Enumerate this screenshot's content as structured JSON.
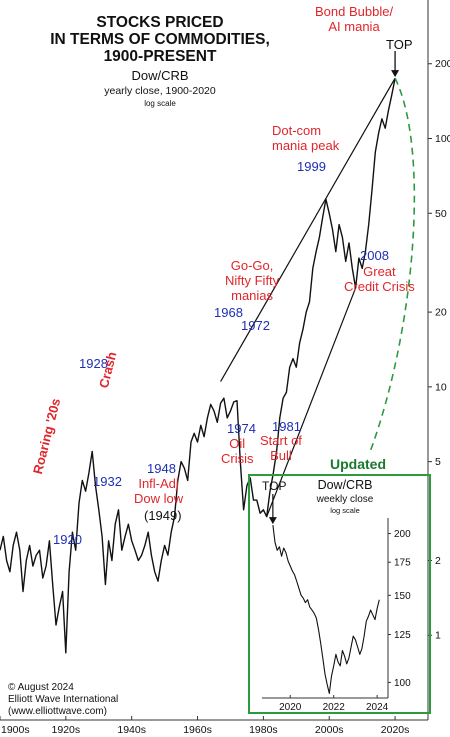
{
  "header": {
    "title_lines": [
      "STOCKS PRICED",
      "IN TERMS OF COMMODITIES,",
      "1900-PRESENT"
    ],
    "subtitle": "Dow/CRB",
    "subtitle2": "yearly close, 1900-2020",
    "subtitle3": "log scale"
  },
  "footer": {
    "line1": "© August 2024",
    "line2": "Elliott Wave International",
    "line3": "(www.elliottwave.com)"
  },
  "annotations": {
    "bond_bubble": [
      "Bond Bubble/",
      "AI mania"
    ],
    "top": "TOP",
    "dotcom": [
      "Dot-com",
      "mania peak"
    ],
    "y1999": "1999",
    "y2008": "2008",
    "great_credit": [
      "Great",
      "Credit Crisis"
    ],
    "gogo": [
      "Go-Go,",
      "Nifty Fifty",
      "manias"
    ],
    "y1968": "1968",
    "y1972": "1972",
    "y1928": "1928",
    "crash": "Crash",
    "roaring": "Roaring '20s",
    "y1932": "1932",
    "y1920": "1920",
    "y1948": "1948",
    "infl_adj": [
      "Infl-Adj",
      "Dow low"
    ],
    "y1949": "(1949)",
    "y1974": "1974",
    "oil_crisis": [
      "Oil",
      "Crisis"
    ],
    "y1981": "1981",
    "start_bull": [
      "Start of",
      "Bull"
    ],
    "updated": "Updated"
  },
  "colors": {
    "red": "#e0262b",
    "blue": "#1f2fb5",
    "green": "#2e9a3e",
    "line": "#111111"
  },
  "chart_data": [
    {
      "type": "line",
      "title": "STOCKS PRICED IN TERMS OF COMMODITIES, 1900-PRESENT",
      "ylabel": "Dow/CRB",
      "yscale": "log",
      "ylim": [
        0.5,
        300
      ],
      "xlim": [
        1900,
        2030
      ],
      "x_ticks": [
        "1900s",
        "1920s",
        "1940s",
        "1960s",
        "1980s",
        "2000s",
        "2020s"
      ],
      "y_ticks": [
        1,
        2,
        5,
        10,
        20,
        50,
        100,
        200
      ],
      "x": [
        1900,
        1901,
        1902,
        1903,
        1904,
        1905,
        1906,
        1907,
        1908,
        1909,
        1910,
        1911,
        1912,
        1913,
        1914,
        1915,
        1916,
        1917,
        1918,
        1919,
        1920,
        1921,
        1922,
        1923,
        1924,
        1925,
        1926,
        1927,
        1928,
        1929,
        1930,
        1931,
        1932,
        1933,
        1934,
        1935,
        1936,
        1937,
        1938,
        1939,
        1940,
        1941,
        1942,
        1943,
        1944,
        1945,
        1946,
        1947,
        1948,
        1949,
        1950,
        1951,
        1952,
        1953,
        1954,
        1955,
        1956,
        1957,
        1958,
        1959,
        1960,
        1961,
        1962,
        1963,
        1964,
        1965,
        1966,
        1967,
        1968,
        1969,
        1970,
        1971,
        1972,
        1973,
        1974,
        1975,
        1976,
        1977,
        1978,
        1979,
        1980,
        1981,
        1982,
        1983,
        1984,
        1985,
        1986,
        1987,
        1988,
        1989,
        1990,
        1991,
        1992,
        1993,
        1994,
        1995,
        1996,
        1997,
        1998,
        1999,
        2000,
        2001,
        2002,
        2003,
        2004,
        2005,
        2006,
        2007,
        2008,
        2009,
        2010,
        2011,
        2012,
        2013,
        2014,
        2015,
        2016,
        2017,
        2018,
        2019,
        2020
      ],
      "y": [
        2.2,
        2.5,
        2.0,
        1.8,
        2.3,
        2.6,
        2.2,
        1.5,
        2.0,
        2.3,
        1.9,
        2.1,
        2.2,
        1.7,
        1.9,
        2.4,
        1.6,
        1.1,
        1.3,
        1.5,
        0.85,
        1.8,
        2.6,
        2.2,
        3.4,
        4.2,
        3.8,
        4.5,
        5.5,
        4.0,
        3.2,
        2.5,
        1.6,
        2.4,
        2.0,
        2.8,
        3.2,
        2.2,
        2.5,
        2.8,
        2.4,
        2.2,
        2.0,
        2.1,
        2.3,
        2.6,
        2.1,
        1.8,
        1.65,
        2.0,
        2.3,
        2.1,
        2.6,
        3.0,
        4.2,
        5.0,
        4.7,
        4.2,
        6.0,
        6.5,
        6.0,
        7.0,
        6.3,
        7.5,
        8.5,
        8.0,
        7.2,
        8.6,
        9.0,
        7.5,
        8.0,
        8.7,
        8.8,
        5.0,
        3.2,
        4.0,
        4.3,
        3.5,
        3.5,
        3.1,
        3.2,
        3.0,
        3.8,
        4.5,
        5.5,
        7.5,
        9.0,
        9.5,
        12.0,
        13.0,
        12.0,
        15.0,
        17.0,
        20.0,
        22.0,
        30.0,
        35.0,
        40.0,
        48.0,
        57.0,
        50.0,
        43.0,
        35.0,
        45.0,
        40.0,
        32.0,
        38.0,
        30.0,
        25.0,
        33.0,
        30.0,
        35.0,
        45.0,
        62.0,
        88.0,
        105.0,
        120.0,
        110.0,
        130.0,
        150.0,
        175.0
      ],
      "annotations": [
        "TOP",
        "Bond Bubble/ AI mania",
        "Dot-com mania peak",
        "1999",
        "2008 Great Credit Crisis",
        "Go-Go, Nifty Fifty manias",
        "1968",
        "1972",
        "1928",
        "Crash",
        "Roaring '20s",
        "1932",
        "1920",
        "1948 Infl-Adj Dow low (1949)",
        "1974 Oil Crisis",
        "1981 Start of Bull"
      ]
    },
    {
      "type": "line",
      "title": "Dow/CRB",
      "subtitle": "weekly close",
      "yscale": "log",
      "ylim": [
        93,
        215
      ],
      "xlim": [
        2019.2,
        2025.0
      ],
      "x_ticks": [
        "2020",
        "2022",
        "2024"
      ],
      "y_ticks": [
        100,
        125,
        150,
        175,
        200
      ],
      "x": [
        2019.7,
        2019.8,
        2019.9,
        2020.0,
        2020.1,
        2020.2,
        2020.3,
        2020.4,
        2020.5,
        2020.6,
        2020.7,
        2020.8,
        2020.9,
        2021.0,
        2021.1,
        2021.2,
        2021.3,
        2021.4,
        2021.5,
        2021.6,
        2021.7,
        2021.8,
        2021.9,
        2022.0,
        2022.1,
        2022.2,
        2022.3,
        2022.4,
        2022.5,
        2022.6,
        2022.7,
        2022.8,
        2022.9,
        2023.0,
        2023.1,
        2023.2,
        2023.3,
        2023.4,
        2023.5,
        2023.6,
        2023.7,
        2023.8,
        2023.9,
        2024.0,
        2024.1,
        2024.2,
        2024.3,
        2024.4,
        2024.5,
        2024.6
      ],
      "y": [
        208,
        192,
        185,
        188,
        180,
        187,
        183,
        176,
        172,
        168,
        165,
        160,
        155,
        150,
        148,
        145,
        147,
        142,
        140,
        138,
        135,
        128,
        120,
        112,
        104,
        99,
        95,
        103,
        108,
        114,
        110,
        108,
        116,
        113,
        109,
        112,
        118,
        124,
        122,
        118,
        114,
        117,
        124,
        133,
        136,
        140,
        137,
        134,
        141,
        147
      ]
    }
  ]
}
